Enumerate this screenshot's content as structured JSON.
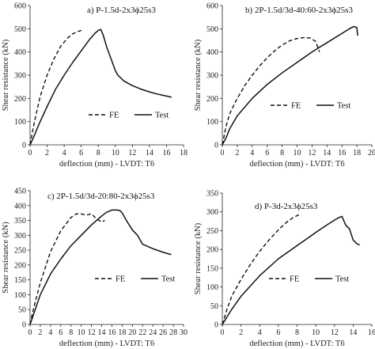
{
  "chart_data": [
    {
      "type": "line",
      "title": "a) P-1.5d-2x3ϕ25s3",
      "xlabel": "deflection (mm) - LVDT: T6",
      "ylabel": "Shear resistance (kN)",
      "xlim": [
        0,
        18
      ],
      "ylim": [
        0,
        600
      ],
      "xticks": [
        0,
        2,
        4,
        6,
        8,
        10,
        12,
        14,
        16,
        18
      ],
      "yticks": [
        0,
        100,
        200,
        300,
        400,
        500,
        600
      ],
      "legend": "middle-right",
      "series": [
        {
          "name": "FE",
          "style": "dashed",
          "x": [
            0,
            0.3,
            0.7,
            1.2,
            2.0,
            2.8,
            3.6,
            4.4,
            5.0,
            5.6,
            6.2
          ],
          "y": [
            0,
            60,
            130,
            210,
            300,
            370,
            425,
            460,
            478,
            488,
            495
          ]
        },
        {
          "name": "Test",
          "style": "solid",
          "x": [
            0,
            0.5,
            1.0,
            2.0,
            3.0,
            4.0,
            5.0,
            6.0,
            7.0,
            7.6,
            8.0,
            8.3,
            8.6,
            9.0,
            9.5,
            10.0,
            10.3,
            11.0,
            12.0,
            13.0,
            14.0,
            15.0,
            16.0,
            16.6
          ],
          "y": [
            0,
            40,
            85,
            165,
            240,
            300,
            355,
            405,
            455,
            480,
            493,
            497,
            470,
            420,
            370,
            320,
            300,
            275,
            255,
            240,
            228,
            218,
            210,
            205
          ]
        }
      ]
    },
    {
      "type": "line",
      "title": "b) 2P-1.5d/3d-40:60-2x3ϕ25s3",
      "xlabel": "deflection (mm) - LVDT: T6",
      "ylabel": "Shear resistance (kN)",
      "xlim": [
        0,
        20
      ],
      "ylim": [
        0,
        600
      ],
      "xticks": [
        0,
        2,
        4,
        6,
        8,
        10,
        12,
        14,
        16,
        18,
        20
      ],
      "yticks": [
        0,
        100,
        200,
        300,
        400,
        500,
        600
      ],
      "legend": "middle",
      "series": [
        {
          "name": "FE",
          "style": "dashed",
          "x": [
            0,
            0.5,
            1.0,
            2.0,
            3.0,
            4.0,
            5.0,
            6.0,
            7.0,
            8.0,
            9.0,
            10.0,
            11.0,
            11.8,
            12.5,
            13.0
          ],
          "y": [
            0,
            80,
            135,
            200,
            255,
            300,
            340,
            375,
            405,
            430,
            448,
            458,
            462,
            460,
            445,
            400
          ]
        },
        {
          "name": "Test",
          "style": "solid",
          "x": [
            0,
            0.5,
            1.0,
            2.0,
            4.0,
            6.0,
            8.0,
            10.0,
            12.0,
            14.0,
            16.0,
            17.0,
            17.6,
            18.0,
            18.1
          ],
          "y": [
            0,
            30,
            70,
            125,
            200,
            260,
            310,
            355,
            400,
            440,
            480,
            500,
            510,
            505,
            470
          ]
        }
      ]
    },
    {
      "type": "line",
      "title": "c) 2P-1.5d/3d-20:80-2x3ϕ25s3",
      "xlabel": "deflection (mm) - LVDT: T6",
      "ylabel": "Shear resistance (kN)",
      "xlim": [
        0,
        30
      ],
      "ylim": [
        0,
        450
      ],
      "xticks": [
        0,
        2,
        4,
        6,
        8,
        10,
        12,
        14,
        16,
        18,
        20,
        22,
        24,
        26,
        28,
        30
      ],
      "yticks": [
        0,
        50,
        100,
        150,
        200,
        250,
        300,
        350,
        400,
        450
      ],
      "legend": "bottom-right",
      "series": [
        {
          "name": "FE",
          "style": "dashed",
          "x": [
            0,
            0.5,
            1.0,
            2.0,
            4.0,
            6.0,
            8.0,
            9.0,
            10.0,
            11.0,
            12.0,
            13.0,
            14.0,
            14.6
          ],
          "y": [
            0,
            40,
            75,
            140,
            245,
            315,
            360,
            372,
            372,
            368,
            372,
            355,
            345,
            350
          ]
        },
        {
          "name": "Test",
          "style": "solid",
          "x": [
            0,
            0.5,
            1.0,
            2.0,
            4.0,
            6.0,
            8.0,
            10.0,
            12.0,
            14.0,
            15.0,
            16.0,
            17.0,
            17.6,
            18.0,
            19.0,
            20.0,
            21.0,
            22.0,
            24.0,
            26.0,
            27.6
          ],
          "y": [
            0,
            25,
            50,
            100,
            170,
            220,
            265,
            300,
            335,
            365,
            378,
            385,
            385,
            383,
            375,
            345,
            318,
            300,
            270,
            255,
            243,
            235
          ]
        }
      ]
    },
    {
      "type": "line",
      "title": "d) P-3d-2x3ϕ25s3",
      "xlabel": "deflection (mm) - LVDT: T6",
      "ylabel": "Shear resistance (kN)",
      "xlim": [
        0,
        16
      ],
      "ylim": [
        0,
        350
      ],
      "xticks": [
        0,
        2,
        4,
        6,
        8,
        10,
        12,
        14,
        16
      ],
      "yticks": [
        0,
        50,
        100,
        150,
        200,
        250,
        300,
        350
      ],
      "legend": "bottom-right",
      "series": [
        {
          "name": "FE",
          "style": "dashed",
          "x": [
            0,
            0.5,
            1.0,
            2.0,
            3.0,
            4.0,
            5.0,
            6.0,
            7.0,
            7.6,
            8.0,
            8.2
          ],
          "y": [
            0,
            40,
            75,
            120,
            160,
            195,
            225,
            252,
            275,
            285,
            290,
            292
          ]
        },
        {
          "name": "Test",
          "style": "solid",
          "x": [
            0,
            0.5,
            1.0,
            2.0,
            4.0,
            6.0,
            8.0,
            10.0,
            11.0,
            12.0,
            12.5,
            12.8,
            13.2,
            13.6,
            14.0,
            14.4,
            14.7
          ],
          "y": [
            0,
            20,
            40,
            75,
            130,
            175,
            210,
            245,
            262,
            278,
            285,
            288,
            265,
            255,
            225,
            215,
            212
          ]
        }
      ]
    }
  ]
}
